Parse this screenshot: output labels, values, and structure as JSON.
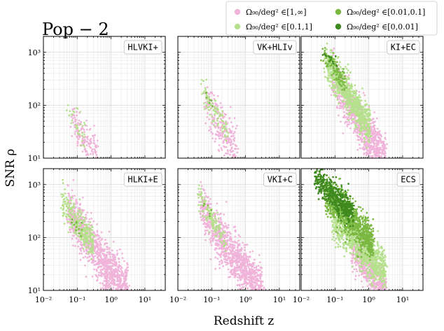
{
  "chart_data": {
    "type": "scatter",
    "title": "Pop − 2",
    "xlabel": "Redshift z",
    "ylabel": "SNR ρ",
    "xscale": "log",
    "yscale": "log",
    "xlim": [
      0.01,
      40
    ],
    "ylim": [
      10,
      2000
    ],
    "xticks": [
      {
        "value": 0.01,
        "label": "10⁻²"
      },
      {
        "value": 0.1,
        "label": "10⁻¹"
      },
      {
        "value": 1,
        "label": "10⁰"
      },
      {
        "value": 10,
        "label": "10¹"
      }
    ],
    "yticks": [
      {
        "value": 10,
        "label": "10¹"
      },
      {
        "value": 100,
        "label": "10²"
      },
      {
        "value": 1000,
        "label": "10³"
      }
    ],
    "grid": true,
    "legend": {
      "position": "top-right",
      "entries": [
        {
          "label": "Ω₉₀/deg² ∈[1,∞]",
          "color": "#f0b3d9"
        },
        {
          "label": "Ω₉₀/deg² ∈[0.01,0.1]",
          "color": "#7ab842"
        },
        {
          "label": "Ω₉₀/deg² ∈[0.1,1]",
          "color": "#b5e08c"
        },
        {
          "label": "Ω₉₀/deg² ∈[0,0.01]",
          "color": "#3f8a1f"
        }
      ]
    },
    "panels": [
      {
        "name": "HLVKI+",
        "regions": [
          {
            "class": "[1,∞]",
            "color": "#f0b3d9",
            "z_range": [
              0.07,
              0.42
            ],
            "snr_at_z": [
              [
                0.07,
                55
              ],
              [
                0.12,
                32
              ],
              [
                0.2,
                18
              ],
              [
                0.3,
                13
              ],
              [
                0.42,
                10
              ]
            ],
            "width_dex": 0.35,
            "count": 170
          },
          {
            "class": "[0.1,1]",
            "color": "#b5e08c",
            "z_range": [
              0.05,
              0.17
            ],
            "snr_at_z": [
              [
                0.05,
                75
              ],
              [
                0.08,
                55
              ],
              [
                0.12,
                40
              ],
              [
                0.17,
                30
              ]
            ],
            "width_dex": 0.3,
            "count": 35
          }
        ]
      },
      {
        "name": "VK+HLIv",
        "regions": [
          {
            "class": "[1,∞]",
            "color": "#f0b3d9",
            "z_range": [
              0.06,
              0.55
            ],
            "snr_at_z": [
              [
                0.06,
                110
              ],
              [
                0.1,
                70
              ],
              [
                0.2,
                35
              ],
              [
                0.35,
                18
              ],
              [
                0.55,
                10
              ]
            ],
            "width_dex": 0.45,
            "count": 260
          },
          {
            "class": "[0.1,1]",
            "color": "#b5e08c",
            "z_range": [
              0.045,
              0.3
            ],
            "snr_at_z": [
              [
                0.045,
                220
              ],
              [
                0.08,
                110
              ],
              [
                0.15,
                60
              ],
              [
                0.3,
                30
              ]
            ],
            "width_dex": 0.3,
            "count": 90
          },
          {
            "class": "[0.01,0.1]",
            "color": "#7ab842",
            "z_range": [
              0.05,
              0.12
            ],
            "snr_at_z": [
              [
                0.05,
                230
              ],
              [
                0.08,
                140
              ],
              [
                0.12,
                90
              ]
            ],
            "width_dex": 0.2,
            "count": 8
          }
        ]
      },
      {
        "name": "KI+EC",
        "regions": [
          {
            "class": "[1,∞]",
            "color": "#f0b3d9",
            "z_range": [
              0.08,
              3.2
            ],
            "snr_at_z": [
              [
                0.08,
                400
              ],
              [
                0.2,
                140
              ],
              [
                0.5,
                50
              ],
              [
                1,
                25
              ],
              [
                2,
                14
              ],
              [
                3.2,
                10
              ]
            ],
            "width_dex": 0.45,
            "count": 900
          },
          {
            "class": "[0.1,1]",
            "color": "#b5e08c",
            "z_range": [
              0.05,
              1.1
            ],
            "snr_at_z": [
              [
                0.05,
                700
              ],
              [
                0.1,
                380
              ],
              [
                0.2,
                190
              ],
              [
                0.4,
                95
              ],
              [
                0.7,
                55
              ],
              [
                1.1,
                40
              ]
            ],
            "width_dex": 0.35,
            "count": 800
          },
          {
            "class": "[0.01,0.1]",
            "color": "#7ab842",
            "z_range": [
              0.04,
              0.2
            ],
            "snr_at_z": [
              [
                0.04,
                900
              ],
              [
                0.07,
                650
              ],
              [
                0.12,
                420
              ],
              [
                0.2,
                280
              ]
            ],
            "width_dex": 0.2,
            "count": 110
          },
          {
            "class": "[0,0.01]",
            "color": "#3f8a1f",
            "z_range": [
              0.04,
              0.11
            ],
            "snr_at_z": [
              [
                0.04,
                1000
              ],
              [
                0.07,
                800
              ],
              [
                0.11,
                600
              ]
            ],
            "width_dex": 0.12,
            "count": 14
          }
        ]
      },
      {
        "name": "HLKI+E",
        "regions": [
          {
            "class": "[1,∞]",
            "color": "#f0b3d9",
            "z_range": [
              0.05,
              3.2
            ],
            "snr_at_z": [
              [
                0.05,
                400
              ],
              [
                0.1,
                180
              ],
              [
                0.3,
                60
              ],
              [
                1,
                22
              ],
              [
                2,
                14
              ],
              [
                3.2,
                10
              ]
            ],
            "width_dex": 0.45,
            "count": 1100
          },
          {
            "class": "[0.1,1]",
            "color": "#b5e08c",
            "z_range": [
              0.035,
              0.3
            ],
            "snr_at_z": [
              [
                0.035,
                500
              ],
              [
                0.07,
                250
              ],
              [
                0.15,
                130
              ],
              [
                0.3,
                70
              ]
            ],
            "width_dex": 0.3,
            "count": 300
          },
          {
            "class": "[0.01,0.1]",
            "color": "#7ab842",
            "z_range": [
              0.04,
              0.14
            ],
            "snr_at_z": [
              [
                0.04,
                300
              ],
              [
                0.08,
                200
              ],
              [
                0.14,
                140
              ]
            ],
            "width_dex": 0.18,
            "count": 12
          }
        ]
      },
      {
        "name": "VKI+C",
        "regions": [
          {
            "class": "[1,∞]",
            "color": "#f0b3d9",
            "z_range": [
              0.045,
              3.2
            ],
            "snr_at_z": [
              [
                0.045,
                450
              ],
              [
                0.1,
                170
              ],
              [
                0.3,
                60
              ],
              [
                1,
                24
              ],
              [
                2,
                14
              ],
              [
                3.2,
                10
              ]
            ],
            "width_dex": 0.45,
            "count": 1100
          },
          {
            "class": "[0.1,1]",
            "color": "#b5e08c",
            "z_range": [
              0.04,
              0.25
            ],
            "snr_at_z": [
              [
                0.04,
                700
              ],
              [
                0.07,
                350
              ],
              [
                0.12,
                180
              ],
              [
                0.25,
                80
              ]
            ],
            "width_dex": 0.25,
            "count": 130
          },
          {
            "class": "[0.01,0.1]",
            "color": "#7ab842",
            "z_range": [
              0.05,
              0.1
            ],
            "snr_at_z": [
              [
                0.05,
                500
              ],
              [
                0.1,
                250
              ]
            ],
            "width_dex": 0.15,
            "count": 6
          }
        ]
      },
      {
        "name": "ECS",
        "regions": [
          {
            "class": "[1,∞]",
            "color": "#f0b3d9",
            "z_range": [
              0.3,
              3.2
            ],
            "snr_at_z": [
              [
                0.3,
                60
              ],
              [
                0.6,
                35
              ],
              [
                1,
                24
              ],
              [
                2,
                14
              ],
              [
                3.2,
                10
              ]
            ],
            "width_dex": 0.35,
            "count": 500
          },
          {
            "class": "[0.1,1]",
            "color": "#b5e08c",
            "z_range": [
              0.08,
              3.2
            ],
            "snr_at_z": [
              [
                0.08,
                250
              ],
              [
                0.2,
                140
              ],
              [
                0.5,
                75
              ],
              [
                1,
                48
              ],
              [
                2,
                30
              ],
              [
                3.2,
                22
              ]
            ],
            "width_dex": 0.4,
            "count": 1000
          },
          {
            "class": "[0.01,0.1]",
            "color": "#7ab842",
            "z_range": [
              0.05,
              1.3
            ],
            "snr_at_z": [
              [
                0.05,
                650
              ],
              [
                0.1,
                420
              ],
              [
                0.2,
                280
              ],
              [
                0.5,
                150
              ],
              [
                1,
                90
              ],
              [
                1.3,
                75
              ]
            ],
            "width_dex": 0.35,
            "count": 900
          },
          {
            "class": "[0,0.01]",
            "color": "#3f8a1f",
            "z_range": [
              0.025,
              0.35
            ],
            "snr_at_z": [
              [
                0.025,
                1300
              ],
              [
                0.05,
                900
              ],
              [
                0.1,
                600
              ],
              [
                0.2,
                400
              ],
              [
                0.35,
                280
              ]
            ],
            "width_dex": 0.25,
            "count": 500
          }
        ]
      }
    ]
  }
}
